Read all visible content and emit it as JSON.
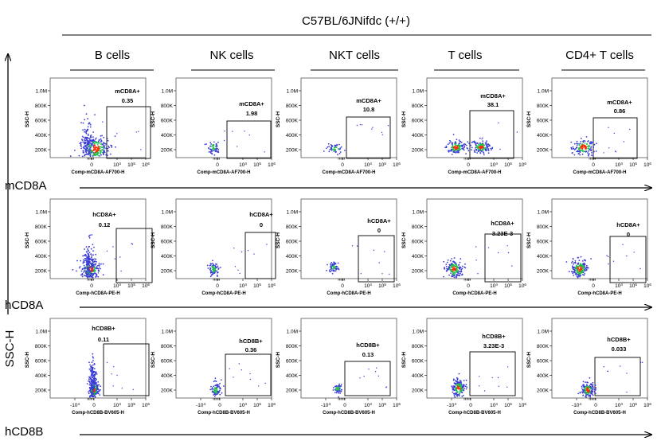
{
  "title": "C57BL/6JNifdc (+/+)",
  "y_axis_label": "SSC-H",
  "columns": [
    "B cells",
    "NK cells",
    "NKT cells",
    "T cells",
    "CD4+ T cells"
  ],
  "rows": [
    {
      "marker": "mCD8A",
      "x_axis_label": "Comp-mCD8A-AF700-H",
      "gate_label": "mCD8A+"
    },
    {
      "marker": "hCD8A",
      "x_axis_label": "Comp-hCD8A-PE-H",
      "gate_label": "hCD8A+"
    },
    {
      "marker": "hCD8B",
      "x_axis_label": "Comp-hCD8B-BV605-H",
      "gate_label": "hCD8B+"
    }
  ],
  "y_ticks": [
    "1.0M",
    "800K",
    "600K",
    "400K",
    "200K"
  ],
  "x_ticks_top": [
    "0",
    "10^4",
    "10^5",
    "10^6"
  ],
  "x_ticks_bottom": [
    "-10^4",
    "0",
    "10^4",
    "10^5",
    "10^6"
  ],
  "colors": {
    "dot_low": "#3b3bd6",
    "dot_mid": "#1fbf4a",
    "dot_high": "#ff2a00",
    "gate": "#000000"
  },
  "chart_data": {
    "type": "scatter",
    "subtype": "flow-cytometry-pseudocolor-grid",
    "x_scale": "biexponential",
    "y_scale": "linear",
    "ylabel": "SSC-H",
    "panels": [
      {
        "row": "mCD8A",
        "column": "B cells",
        "gate": "mCD8A+",
        "percent": "0.35"
      },
      {
        "row": "mCD8A",
        "column": "NK cells",
        "gate": "mCD8A+",
        "percent": "1.98"
      },
      {
        "row": "mCD8A",
        "column": "NKT cells",
        "gate": "mCD8A+",
        "percent": "10.8"
      },
      {
        "row": "mCD8A",
        "column": "T cells",
        "gate": "mCD8A+",
        "percent": "38.1"
      },
      {
        "row": "mCD8A",
        "column": "CD4+ T cells",
        "gate": "mCD8A+",
        "percent": "0.86"
      },
      {
        "row": "hCD8A",
        "column": "B cells",
        "gate": "hCD8A+",
        "percent": "0.12"
      },
      {
        "row": "hCD8A",
        "column": "NK cells",
        "gate": "hCD8A+",
        "percent": "0"
      },
      {
        "row": "hCD8A",
        "column": "NKT cells",
        "gate": "hCD8A+",
        "percent": "0"
      },
      {
        "row": "hCD8A",
        "column": "T cells",
        "gate": "hCD8A+",
        "percent": "3.23E-3"
      },
      {
        "row": "hCD8A",
        "column": "CD4+ T cells",
        "gate": "hCD8A+",
        "percent": "0"
      },
      {
        "row": "hCD8B",
        "column": "B cells",
        "gate": "hCD8B+",
        "percent": "0.11"
      },
      {
        "row": "hCD8B",
        "column": "NK cells",
        "gate": "hCD8B+",
        "percent": "0.36"
      },
      {
        "row": "hCD8B",
        "column": "NKT cells",
        "gate": "hCD8B+",
        "percent": "0.13"
      },
      {
        "row": "hCD8B",
        "column": "T cells",
        "gate": "hCD8B+",
        "percent": "3.23E-3"
      },
      {
        "row": "hCD8B",
        "column": "CD4+ T cells",
        "gate": "hCD8B+",
        "percent": "0.033"
      }
    ]
  }
}
